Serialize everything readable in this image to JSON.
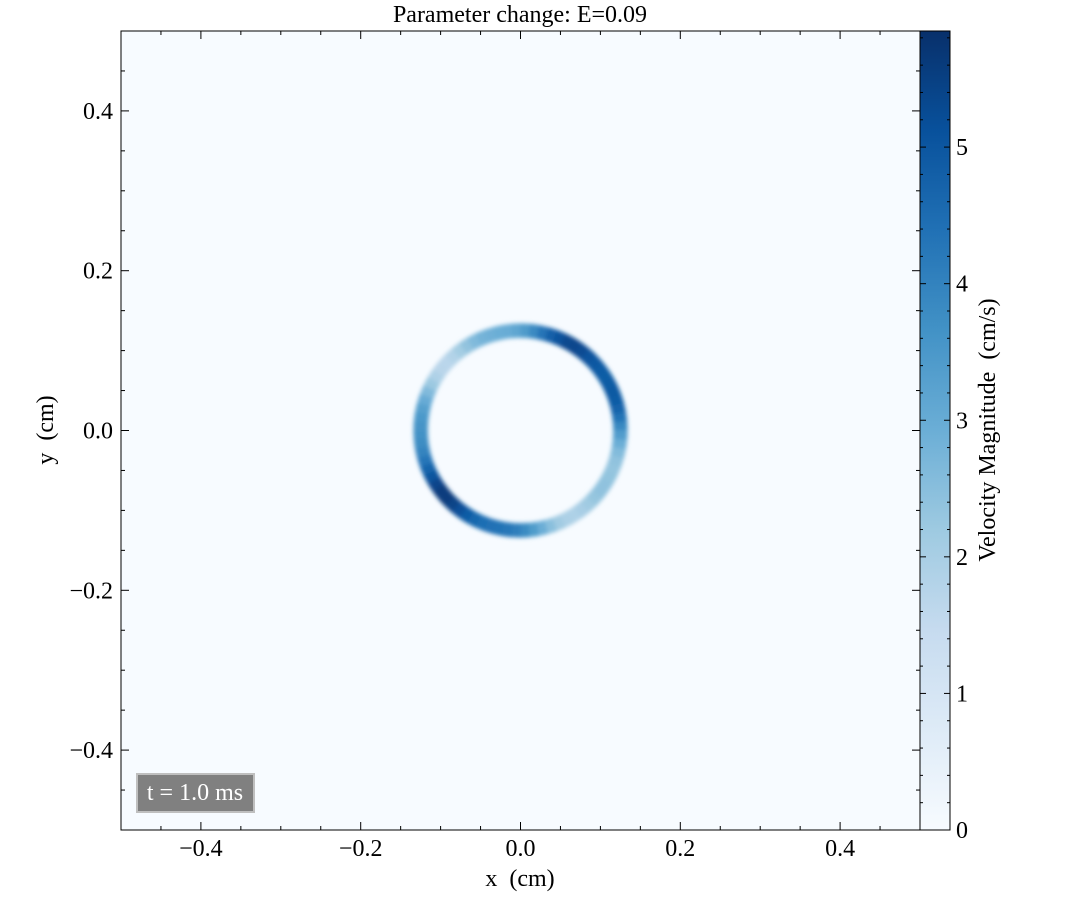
{
  "chart_data": {
    "type": "heatmap",
    "title": "Parameter change: E=0.09",
    "xlabel": "x  (cm)",
    "ylabel": "y  (cm)",
    "xlim": [
      -0.5,
      0.5
    ],
    "ylim": [
      -0.5,
      0.5
    ],
    "x_ticks": [
      -0.4,
      -0.2,
      0.0,
      0.2,
      0.4
    ],
    "x_tick_labels": [
      "−0.4",
      "−0.2",
      "0.0",
      "0.2",
      "0.4"
    ],
    "y_ticks": [
      -0.4,
      -0.2,
      0.0,
      0.2,
      0.4
    ],
    "y_tick_labels": [
      "−0.4",
      "−0.2",
      "0.0",
      "0.2",
      "0.4"
    ],
    "grid": false,
    "colormap": "Blues",
    "colorbar": {
      "label": "Velocity Magnitude  (cm/s)",
      "range": [
        0,
        5.85
      ],
      "ticks": [
        0,
        1,
        2,
        3,
        4,
        5
      ],
      "tick_labels": [
        "0",
        "1",
        "2",
        "3",
        "4",
        "5"
      ]
    },
    "feature": {
      "shape": "ring",
      "center": [
        0.0,
        0.0
      ],
      "radius": 0.125,
      "thickness": 0.018,
      "peak_value": 5.85,
      "background_value": 0.1
    },
    "annotation": "t = 1.0 ms"
  },
  "colors": {
    "background_field": "#f7fbff",
    "colormap_stops": [
      "#f7fbff",
      "#deebf7",
      "#c6dbef",
      "#9ecae1",
      "#6baed6",
      "#4292c6",
      "#2171b5",
      "#08519c",
      "#08306b"
    ],
    "annotation_box": "#808080",
    "annotation_border": "#bfbfbf"
  }
}
